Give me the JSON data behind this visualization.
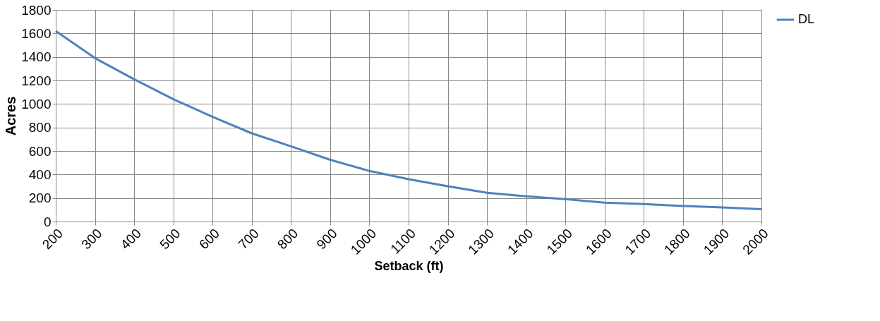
{
  "chart_data": {
    "type": "line",
    "xlabel": "Setback (ft)",
    "ylabel": "Acres",
    "x": [
      200,
      300,
      400,
      500,
      600,
      700,
      800,
      900,
      1000,
      1100,
      1200,
      1300,
      1400,
      1500,
      1600,
      1700,
      1800,
      1900,
      2000
    ],
    "series": [
      {
        "name": "DL",
        "color": "#4f81bd",
        "values": [
          1620,
          1390,
          1210,
          1040,
          890,
          750,
          640,
          525,
          430,
          360,
          300,
          245,
          215,
          190,
          160,
          148,
          132,
          120,
          105
        ]
      }
    ],
    "xlim": [
      200,
      2000
    ],
    "xticks": [
      200,
      300,
      400,
      500,
      600,
      700,
      800,
      900,
      1000,
      1100,
      1200,
      1300,
      1400,
      1500,
      1600,
      1700,
      1800,
      1900,
      2000
    ],
    "ylim": [
      0,
      1800
    ],
    "yticks": [
      0,
      200,
      400,
      600,
      800,
      1000,
      1200,
      1400,
      1600,
      1800
    ],
    "grid": true,
    "legend": "right",
    "marker": "none",
    "line_style": "solid"
  }
}
